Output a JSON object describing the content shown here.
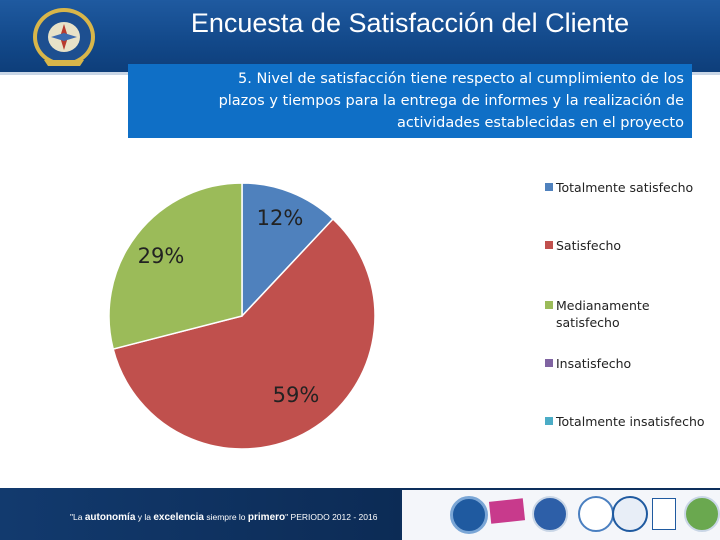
{
  "header": {
    "title": "Encuesta de Satisfacción del Cliente"
  },
  "question": {
    "line1": "5. Nivel de satisfacción tiene respecto al cumplimiento de los",
    "line2": "plazos y tiempos para la  entrega de informes y la realización de",
    "line3": "actividades establecidas en el proyecto"
  },
  "chart_data": {
    "type": "pie",
    "title": "",
    "categories": [
      "Totalmente satisfecho",
      "Satisfecho",
      "Medianamente satisfecho",
      "Insatisfecho",
      "Totalmente insatisfecho"
    ],
    "values": [
      12,
      59,
      29,
      0,
      0
    ],
    "labels": [
      "12%",
      "59%",
      "29%",
      "",
      ""
    ],
    "colors": [
      "#4f81bd",
      "#c0504d",
      "#9bbb59",
      "#8064a2",
      "#4bacc6"
    ],
    "legend_position": "right"
  },
  "footer": {
    "slogan_open": "\"La ",
    "slogan_b1": "autonomía",
    "slogan_mid1": " y la ",
    "slogan_b2": "excelencia",
    "slogan_mid2": " siempre lo ",
    "slogan_b3": "primero",
    "slogan_close": "\" PERIODO 2012 - 2016"
  }
}
